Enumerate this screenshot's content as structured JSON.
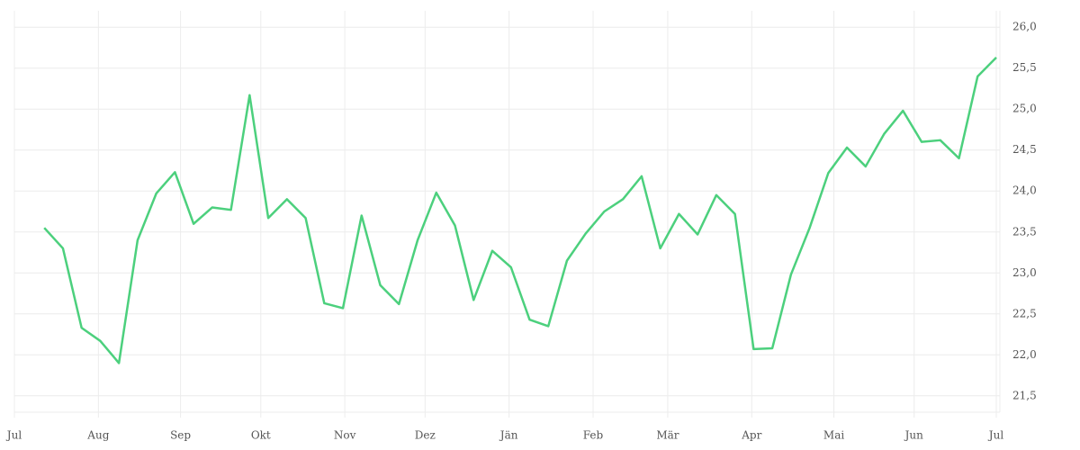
{
  "chart_data": {
    "type": "line",
    "values": [
      23.55,
      23.3,
      22.33,
      22.17,
      21.9,
      23.4,
      23.97,
      24.23,
      23.6,
      23.8,
      23.77,
      25.17,
      23.67,
      23.9,
      23.67,
      22.63,
      22.57,
      23.7,
      22.85,
      22.62,
      23.4,
      23.98,
      23.58,
      22.67,
      23.27,
      23.07,
      22.43,
      22.35,
      23.15,
      23.48,
      23.75,
      23.9,
      24.18,
      23.3,
      23.72,
      23.47,
      23.95,
      23.72,
      22.07,
      22.08,
      22.98,
      23.55,
      24.22,
      24.53,
      24.3,
      24.7,
      24.98,
      24.6,
      24.62,
      24.4,
      25.4,
      25.63
    ],
    "color": "#4cd07d",
    "xlim": [
      -1.6,
      51
    ],
    "xticks": [
      {
        "value": -1.6,
        "label": "Jul"
      },
      {
        "value": 2.9,
        "label": "Aug"
      },
      {
        "value": 7.3,
        "label": "Sep"
      },
      {
        "value": 11.6,
        "label": "Okt"
      },
      {
        "value": 16.1,
        "label": "Nov"
      },
      {
        "value": 20.4,
        "label": "Dez"
      },
      {
        "value": 24.9,
        "label": "Jän"
      },
      {
        "value": 29.4,
        "label": "Feb"
      },
      {
        "value": 33.4,
        "label": "Mär"
      },
      {
        "value": 37.9,
        "label": "Apr"
      },
      {
        "value": 42.3,
        "label": "Mai"
      },
      {
        "value": 46.6,
        "label": "Jun"
      },
      {
        "value": 51,
        "label": "Jul"
      }
    ],
    "ylim": [
      21.3,
      26.2
    ],
    "yticks": [
      {
        "value": 21.5,
        "label": "21,5"
      },
      {
        "value": 22,
        "label": "22,0"
      },
      {
        "value": 22.5,
        "label": "22,5"
      },
      {
        "value": 23,
        "label": "23,0"
      },
      {
        "value": 23.5,
        "label": "23,5"
      },
      {
        "value": 24,
        "label": "24,0"
      },
      {
        "value": 24.5,
        "label": "24,5"
      },
      {
        "value": 25,
        "label": "25,0"
      },
      {
        "value": 25.5,
        "label": "25,5"
      },
      {
        "value": 26,
        "label": "26,0"
      }
    ],
    "grid": true
  }
}
